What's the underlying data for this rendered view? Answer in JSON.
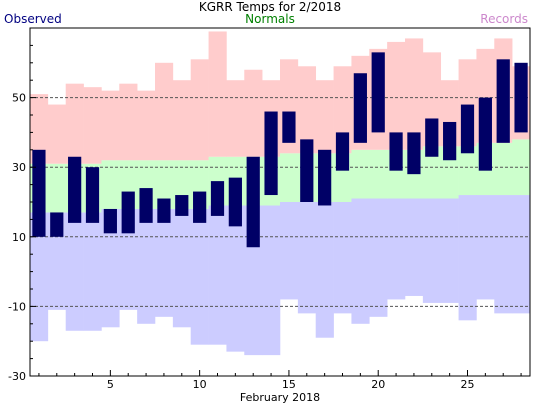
{
  "colors": {
    "observed": "#000066",
    "normal_band": "#ccffcc",
    "record_high_band": "#ffcccc",
    "record_low_band": "#ccccff",
    "observed_label": "#000080",
    "normals_label": "#008000",
    "records_label": "#cc88cc"
  },
  "chart_data": {
    "type": "bar",
    "title": "KGRR Temps for 2/2018",
    "xlabel": "February 2018",
    "ylabel": "",
    "legend": {
      "observed": "Observed",
      "normals": "Normals",
      "records": "Records"
    },
    "xlim": [
      0.5,
      28.5
    ],
    "ylim": [
      -30,
      70
    ],
    "x_ticks": [
      5,
      10,
      15,
      20,
      25
    ],
    "y_ticks": [
      -30,
      -10,
      10,
      30,
      50
    ],
    "grid": "dashed horizontal at -10, 10, 30, 50",
    "days": [
      1,
      2,
      3,
      4,
      5,
      6,
      7,
      8,
      9,
      10,
      11,
      12,
      13,
      14,
      15,
      16,
      17,
      18,
      19,
      20,
      21,
      22,
      23,
      24,
      25,
      26,
      27,
      28
    ],
    "observed_high": [
      35,
      17,
      33,
      30,
      18,
      23,
      24,
      21,
      22,
      23,
      26,
      27,
      33,
      46,
      46,
      38,
      35,
      40,
      57,
      63,
      40,
      40,
      44,
      43,
      48,
      50,
      61,
      60
    ],
    "observed_low": [
      10,
      10,
      14,
      14,
      11,
      11,
      14,
      14,
      16,
      14,
      16,
      13,
      7,
      22,
      37,
      20,
      19,
      29,
      37,
      40,
      29,
      28,
      33,
      32,
      34,
      29,
      37,
      40
    ],
    "normal_high": [
      31,
      31,
      31,
      31,
      32,
      32,
      32,
      32,
      32,
      32,
      33,
      33,
      33,
      33,
      34,
      34,
      34,
      34,
      35,
      35,
      35,
      35,
      36,
      36,
      36,
      37,
      37,
      38
    ],
    "normal_low": [
      17,
      17,
      17,
      17,
      18,
      18,
      18,
      18,
      18,
      18,
      19,
      19,
      19,
      19,
      20,
      20,
      20,
      20,
      21,
      21,
      21,
      21,
      21,
      21,
      22,
      22,
      22,
      22
    ],
    "record_high": [
      51,
      48,
      54,
      53,
      52,
      54,
      52,
      60,
      55,
      61,
      69,
      55,
      58,
      55,
      61,
      59,
      55,
      59,
      62,
      64,
      66,
      67,
      63,
      55,
      61,
      64,
      67,
      59
    ],
    "record_low": [
      -20,
      -11,
      -17,
      -17,
      -16,
      -11,
      -15,
      -13,
      -16,
      -21,
      -21,
      -23,
      -24,
      -24,
      -8,
      -12,
      -19,
      -12,
      -15,
      -13,
      -8,
      -7,
      -9,
      -9,
      -14,
      -8,
      -12,
      -12
    ]
  }
}
